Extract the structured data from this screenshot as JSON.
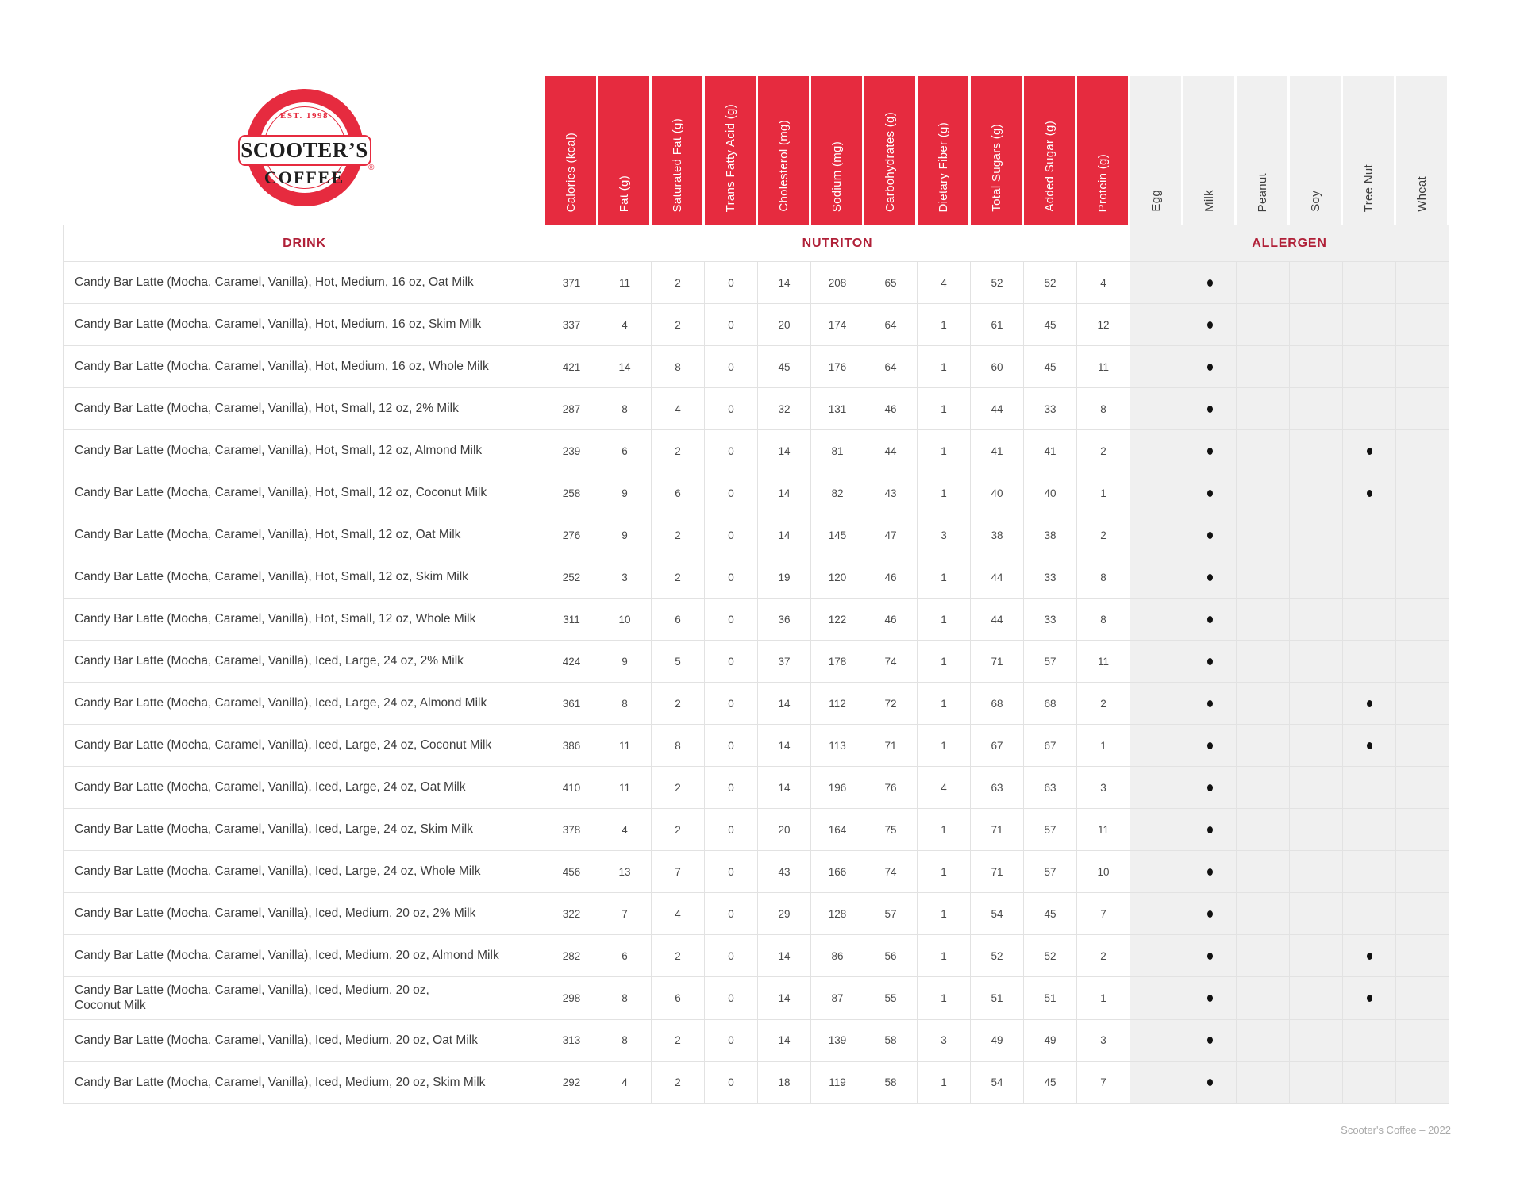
{
  "brand": {
    "est": "EST. 1998",
    "name": "SCOOTER’S",
    "word": "COFFEE",
    "reg": "®"
  },
  "section_headers": {
    "drink": "DRINK",
    "nutrition": "NUTRITON",
    "allergen": "ALLERGEN"
  },
  "nutrition_columns": [
    "Calories (kcal)",
    "Fat (g)",
    "Saturated Fat (g)",
    "Trans Fatty Acid (g)",
    "Cholesterol (mg)",
    "Sodium (mg)",
    "Carbohydrates (g)",
    "Dietary Fiber (g)",
    "Total Sugars (g)",
    "Added Sugar (g)",
    "Protein (g)"
  ],
  "allergen_columns": [
    "Egg",
    "Milk",
    "Peanut",
    "Soy",
    "Tree Nut",
    "Wheat"
  ],
  "rows": [
    {
      "name": "Candy Bar Latte (Mocha, Caramel, Vanilla), Hot, Medium, 16 oz, Oat Milk",
      "values": [
        371,
        11,
        2,
        0,
        14,
        208,
        65,
        4,
        52,
        52,
        4
      ],
      "allergens": [
        1
      ]
    },
    {
      "name": "Candy Bar Latte (Mocha, Caramel, Vanilla), Hot, Medium, 16 oz, Skim Milk",
      "values": [
        337,
        4,
        2,
        0,
        20,
        174,
        64,
        1,
        61,
        45,
        12
      ],
      "allergens": [
        1
      ]
    },
    {
      "name": "Candy Bar Latte (Mocha, Caramel, Vanilla), Hot, Medium, 16 oz, Whole Milk",
      "values": [
        421,
        14,
        8,
        0,
        45,
        176,
        64,
        1,
        60,
        45,
        11
      ],
      "allergens": [
        1
      ]
    },
    {
      "name": "Candy Bar Latte (Mocha, Caramel, Vanilla), Hot, Small, 12 oz, 2% Milk",
      "values": [
        287,
        8,
        4,
        0,
        32,
        131,
        46,
        1,
        44,
        33,
        8
      ],
      "allergens": [
        1
      ]
    },
    {
      "name": "Candy Bar Latte (Mocha, Caramel, Vanilla), Hot, Small, 12 oz, Almond Milk",
      "values": [
        239,
        6,
        2,
        0,
        14,
        81,
        44,
        1,
        41,
        41,
        2
      ],
      "allergens": [
        1,
        4
      ]
    },
    {
      "name": "Candy Bar Latte (Mocha, Caramel, Vanilla), Hot, Small, 12 oz, Coconut Milk",
      "values": [
        258,
        9,
        6,
        0,
        14,
        82,
        43,
        1,
        40,
        40,
        1
      ],
      "allergens": [
        1,
        4
      ]
    },
    {
      "name": "Candy Bar Latte (Mocha, Caramel, Vanilla), Hot, Small, 12 oz, Oat Milk",
      "values": [
        276,
        9,
        2,
        0,
        14,
        145,
        47,
        3,
        38,
        38,
        2
      ],
      "allergens": [
        1
      ]
    },
    {
      "name": "Candy Bar Latte (Mocha, Caramel, Vanilla), Hot, Small, 12 oz, Skim Milk",
      "values": [
        252,
        3,
        2,
        0,
        19,
        120,
        46,
        1,
        44,
        33,
        8
      ],
      "allergens": [
        1
      ]
    },
    {
      "name": "Candy Bar Latte (Mocha, Caramel, Vanilla), Hot, Small, 12 oz, Whole Milk",
      "values": [
        311,
        10,
        6,
        0,
        36,
        122,
        46,
        1,
        44,
        33,
        8
      ],
      "allergens": [
        1
      ]
    },
    {
      "name": "Candy Bar Latte (Mocha, Caramel, Vanilla), Iced, Large, 24 oz, 2% Milk",
      "values": [
        424,
        9,
        5,
        0,
        37,
        178,
        74,
        1,
        71,
        57,
        11
      ],
      "allergens": [
        1
      ]
    },
    {
      "name": "Candy Bar Latte (Mocha, Caramel, Vanilla), Iced, Large, 24 oz, Almond Milk",
      "values": [
        361,
        8,
        2,
        0,
        14,
        112,
        72,
        1,
        68,
        68,
        2
      ],
      "allergens": [
        1,
        4
      ]
    },
    {
      "name": "Candy Bar Latte (Mocha, Caramel, Vanilla), Iced, Large, 24 oz, Coconut Milk",
      "values": [
        386,
        11,
        8,
        0,
        14,
        113,
        71,
        1,
        67,
        67,
        1
      ],
      "allergens": [
        1,
        4
      ]
    },
    {
      "name": "Candy Bar Latte (Mocha, Caramel, Vanilla), Iced, Large, 24 oz, Oat Milk",
      "values": [
        410,
        11,
        2,
        0,
        14,
        196,
        76,
        4,
        63,
        63,
        3
      ],
      "allergens": [
        1
      ]
    },
    {
      "name": "Candy Bar Latte (Mocha, Caramel, Vanilla), Iced, Large, 24 oz, Skim Milk",
      "values": [
        378,
        4,
        2,
        0,
        20,
        164,
        75,
        1,
        71,
        57,
        11
      ],
      "allergens": [
        1
      ]
    },
    {
      "name": "Candy Bar Latte (Mocha, Caramel, Vanilla), Iced, Large, 24 oz, Whole Milk",
      "values": [
        456,
        13,
        7,
        0,
        43,
        166,
        74,
        1,
        71,
        57,
        10
      ],
      "allergens": [
        1
      ]
    },
    {
      "name": "Candy Bar Latte (Mocha, Caramel, Vanilla), Iced, Medium, 20 oz, 2% Milk",
      "values": [
        322,
        7,
        4,
        0,
        29,
        128,
        57,
        1,
        54,
        45,
        7
      ],
      "allergens": [
        1
      ]
    },
    {
      "name": "Candy Bar Latte (Mocha, Caramel, Vanilla), Iced, Medium, 20 oz, Almond Milk",
      "values": [
        282,
        6,
        2,
        0,
        14,
        86,
        56,
        1,
        52,
        52,
        2
      ],
      "allergens": [
        1,
        4
      ]
    },
    {
      "name": "Candy Bar Latte (Mocha, Caramel, Vanilla), Iced, Medium, 20 oz,\nCoconut Milk",
      "values": [
        298,
        8,
        6,
        0,
        14,
        87,
        55,
        1,
        51,
        51,
        1
      ],
      "allergens": [
        1,
        4
      ]
    },
    {
      "name": "Candy Bar Latte (Mocha, Caramel, Vanilla), Iced, Medium, 20 oz, Oat Milk",
      "values": [
        313,
        8,
        2,
        0,
        14,
        139,
        58,
        3,
        49,
        49,
        3
      ],
      "allergens": [
        1
      ]
    },
    {
      "name": "Candy Bar Latte (Mocha, Caramel, Vanilla), Iced, Medium, 20 oz, Skim Milk",
      "values": [
        292,
        4,
        2,
        0,
        18,
        119,
        58,
        1,
        54,
        45,
        7
      ],
      "allergens": [
        1
      ]
    }
  ],
  "footer": "Scooter's Coffee – 2022",
  "colors": {
    "brand_red": "#E62B3F",
    "dark_red": "#B02038",
    "allergen_bg": "#F0F0F0",
    "border": "#E2E2E2",
    "text": "#3E3E3E",
    "num": "#4A4A4A",
    "footer": "#A9A9A9",
    "dot": "#111111"
  }
}
